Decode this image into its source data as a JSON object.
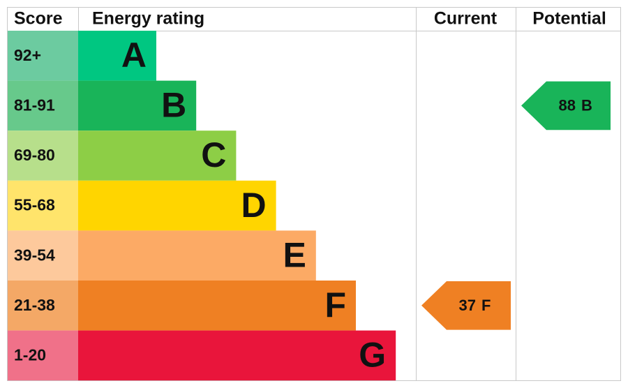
{
  "header": {
    "score": "Score",
    "rating": "Energy rating",
    "current": "Current",
    "potential": "Potential"
  },
  "bands": [
    {
      "range": "92+",
      "letter": "A",
      "color": "#00c781",
      "light": "#6ccba0"
    },
    {
      "range": "81-91",
      "letter": "B",
      "color": "#19b459",
      "light": "#67c98b"
    },
    {
      "range": "69-80",
      "letter": "C",
      "color": "#8dce46",
      "light": "#b7df8b"
    },
    {
      "range": "55-68",
      "letter": "D",
      "color": "#ffd500",
      "light": "#ffe46b"
    },
    {
      "range": "39-54",
      "letter": "E",
      "color": "#fcaa65",
      "light": "#fdc99c"
    },
    {
      "range": "21-38",
      "letter": "F",
      "color": "#ef8023",
      "light": "#f4a866"
    },
    {
      "range": "1-20",
      "letter": "G",
      "color": "#e9153b",
      "light": "#f07189"
    }
  ],
  "current": {
    "value": 37,
    "letter": "F"
  },
  "potential": {
    "value": 88,
    "letter": "B"
  }
}
